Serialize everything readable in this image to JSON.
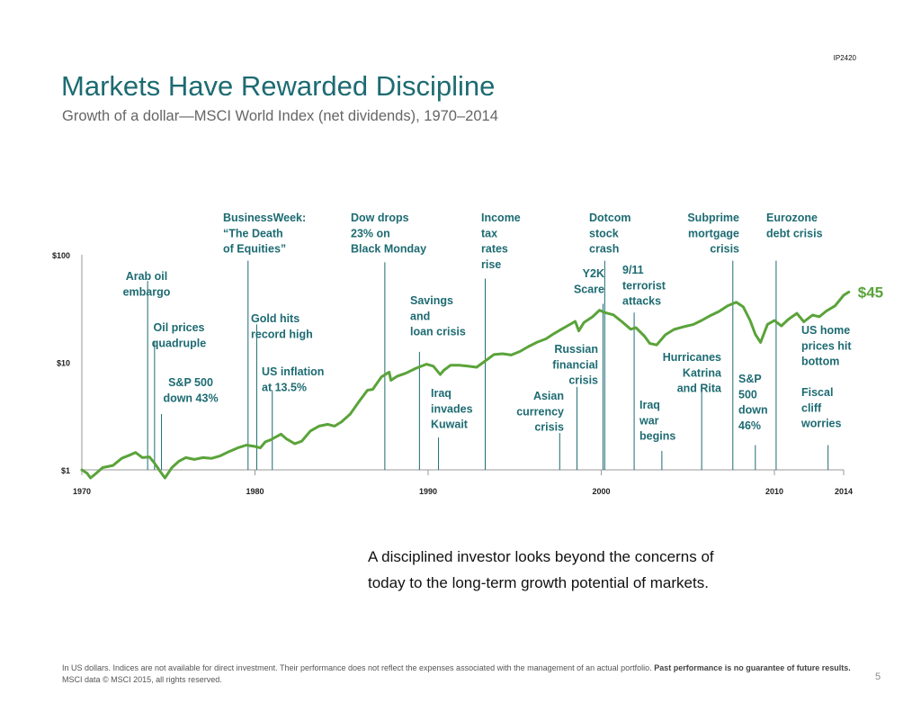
{
  "header": {
    "code": "IP2420",
    "title": "Markets Have Rewarded Discipline",
    "subtitle": "Growth of a dollar—MSCI World Index (net dividends), 1970–2014"
  },
  "chart_data": {
    "type": "line",
    "title": "Growth of a dollar—MSCI World Index (net dividends), 1970–2014",
    "y_scale": "log",
    "xlim": [
      1970,
      2014
    ],
    "ylim": [
      1,
      100
    ],
    "x_ticks": [
      "1970",
      "1980",
      "1990",
      "2000",
      "2010",
      "2014"
    ],
    "y_ticks": [
      "$1",
      "$10",
      "$100"
    ],
    "grid": false,
    "line_color": "#5aa33a",
    "annotation_color": "#1d6b72",
    "end_label": "$45",
    "series": [
      {
        "points": [
          [
            1970.0,
            1.0
          ],
          [
            1970.3,
            0.93
          ],
          [
            1970.5,
            0.84
          ],
          [
            1970.8,
            0.92
          ],
          [
            1971.2,
            1.05
          ],
          [
            1971.8,
            1.1
          ],
          [
            1972.3,
            1.28
          ],
          [
            1972.8,
            1.38
          ],
          [
            1973.1,
            1.45
          ],
          [
            1973.5,
            1.3
          ],
          [
            1973.9,
            1.32
          ],
          [
            1974.2,
            1.15
          ],
          [
            1974.5,
            0.98
          ],
          [
            1974.8,
            0.84
          ],
          [
            1975.2,
            1.05
          ],
          [
            1975.6,
            1.2
          ],
          [
            1976.0,
            1.3
          ],
          [
            1976.5,
            1.25
          ],
          [
            1977.0,
            1.3
          ],
          [
            1977.5,
            1.28
          ],
          [
            1978.0,
            1.35
          ],
          [
            1978.5,
            1.48
          ],
          [
            1979.0,
            1.6
          ],
          [
            1979.5,
            1.7
          ],
          [
            1980.0,
            1.65
          ],
          [
            1980.3,
            1.6
          ],
          [
            1980.6,
            1.82
          ],
          [
            1980.9,
            1.9
          ],
          [
            1981.5,
            2.15
          ],
          [
            1981.8,
            1.95
          ],
          [
            1982.3,
            1.75
          ],
          [
            1982.7,
            1.85
          ],
          [
            1983.2,
            2.3
          ],
          [
            1983.7,
            2.55
          ],
          [
            1984.2,
            2.65
          ],
          [
            1984.6,
            2.55
          ],
          [
            1985.0,
            2.8
          ],
          [
            1985.5,
            3.3
          ],
          [
            1986.0,
            4.3
          ],
          [
            1986.5,
            5.5
          ],
          [
            1986.8,
            5.6
          ],
          [
            1987.3,
            7.3
          ],
          [
            1987.75,
            8.1
          ],
          [
            1987.85,
            6.8
          ],
          [
            1988.2,
            7.4
          ],
          [
            1988.7,
            7.9
          ],
          [
            1989.3,
            8.8
          ],
          [
            1989.9,
            9.6
          ],
          [
            1990.3,
            9.2
          ],
          [
            1990.7,
            7.7
          ],
          [
            1990.9,
            8.4
          ],
          [
            1991.3,
            9.4
          ],
          [
            1991.8,
            9.4
          ],
          [
            1992.3,
            9.2
          ],
          [
            1992.8,
            9.0
          ],
          [
            1993.3,
            10.3
          ],
          [
            1993.8,
            11.8
          ],
          [
            1994.3,
            12.0
          ],
          [
            1994.8,
            11.7
          ],
          [
            1995.3,
            12.6
          ],
          [
            1995.8,
            14.0
          ],
          [
            1996.3,
            15.4
          ],
          [
            1996.8,
            16.5
          ],
          [
            1997.3,
            18.6
          ],
          [
            1997.7,
            20.3
          ],
          [
            1998.0,
            21.6
          ],
          [
            1998.5,
            24.0
          ],
          [
            1998.7,
            19.6
          ],
          [
            1999.0,
            23.5
          ],
          [
            1999.5,
            26.5
          ],
          [
            1999.9,
            30.5
          ],
          [
            2000.2,
            29.0
          ],
          [
            2000.7,
            27.6
          ],
          [
            2001.2,
            23.8
          ],
          [
            2001.7,
            20.3
          ],
          [
            2002.0,
            21.0
          ],
          [
            2002.5,
            17.5
          ],
          [
            2002.8,
            15.0
          ],
          [
            2003.2,
            14.5
          ],
          [
            2003.7,
            18.0
          ],
          [
            2004.2,
            20.2
          ],
          [
            2004.8,
            21.5
          ],
          [
            2005.3,
            22.4
          ],
          [
            2005.8,
            24.5
          ],
          [
            2006.3,
            27.2
          ],
          [
            2006.8,
            29.7
          ],
          [
            2007.3,
            33.5
          ],
          [
            2007.8,
            36.2
          ],
          [
            2008.2,
            32.8
          ],
          [
            2008.6,
            24.5
          ],
          [
            2008.9,
            18.2
          ],
          [
            2009.2,
            15.3
          ],
          [
            2009.6,
            22.5
          ],
          [
            2010.0,
            24.5
          ],
          [
            2010.4,
            21.8
          ],
          [
            2010.8,
            25.0
          ],
          [
            2011.3,
            28.5
          ],
          [
            2011.7,
            23.8
          ],
          [
            2012.2,
            27.5
          ],
          [
            2012.6,
            26.5
          ],
          [
            2013.0,
            30.0
          ],
          [
            2013.5,
            33.5
          ],
          [
            2014.0,
            42.0
          ],
          [
            2014.3,
            45.0
          ]
        ]
      }
    ],
    "annotations": [
      {
        "label": [
          "Arab oil",
          "embargo"
        ],
        "year": 1973.8,
        "marker_top": 57
      },
      {
        "label": [
          "Oil prices",
          "quadruple"
        ],
        "year": 1974.2,
        "marker_top": 15.4
      },
      {
        "label": [
          "S&P 500",
          "down 43%"
        ],
        "year": 1974.6,
        "marker_top": 3.3
      },
      {
        "label": [
          "BusinessWeek:",
          "“The Death",
          "of Equities”"
        ],
        "year": 1979.6,
        "marker_top": 88
      },
      {
        "label": [
          "Gold hits",
          "record high"
        ],
        "year": 1980.1,
        "marker_top": 22.5
      },
      {
        "label": [
          "US inflation",
          "at 13.5%"
        ],
        "year": 1981.0,
        "marker_top": 5.5
      },
      {
        "label": [
          "Dow drops",
          "23% on",
          "Black Monday"
        ],
        "year": 1987.5,
        "marker_top": 85
      },
      {
        "label": [
          "Savings",
          "and",
          "loan crisis"
        ],
        "year": 1989.5,
        "marker_top": 12.5
      },
      {
        "label": [
          "Iraq",
          "invades",
          "Kuwait"
        ],
        "year": 1990.6,
        "marker_top": 2.0
      },
      {
        "label": [
          "Income",
          "tax",
          "rates",
          "rise"
        ],
        "year": 1993.3,
        "marker_top": 60
      },
      {
        "label": [
          "Asian",
          "currency",
          "crisis"
        ],
        "year": 1997.6,
        "marker_top": 2.2
      },
      {
        "label": [
          "Russian",
          "financial",
          "crisis"
        ],
        "year": 1998.6,
        "marker_top": 5.9
      },
      {
        "label": [
          "Dotcom",
          "stock",
          "crash"
        ],
        "year": 2000.2,
        "marker_top": 88
      },
      {
        "label": [
          "Y2K",
          "Scare"
        ],
        "year": 2000.1,
        "marker_top": 35
      },
      {
        "label": [
          "9/11",
          "terrorist",
          "attacks"
        ],
        "year": 2001.9,
        "marker_top": 29
      },
      {
        "label": [
          "Iraq",
          "war",
          "begins"
        ],
        "year": 2003.5,
        "marker_top": 1.5
      },
      {
        "label": [
          "Hurricanes",
          "Katrina",
          "and Rita"
        ],
        "year": 2005.8,
        "marker_top": 5.4
      },
      {
        "label": [
          "Subprime",
          "mortgage",
          "crisis"
        ],
        "year": 2007.6,
        "marker_top": 88
      },
      {
        "label": [
          "S&P",
          "500",
          "down",
          "46%"
        ],
        "year": 2008.9,
        "marker_top": 1.7
      },
      {
        "label": [
          "Eurozone",
          "debt crisis"
        ],
        "year": 2010.1,
        "marker_top": 88
      },
      {
        "label": [
          "US home",
          "prices hit",
          "bottom"
        ],
        "year": 2013.0,
        "marker_top": null
      },
      {
        "label": [
          "Fiscal",
          "cliff",
          "worries"
        ],
        "year": 2013.1,
        "marker_top": 1.7
      }
    ]
  },
  "message": "A disciplined investor looks beyond the concerns of today to the long-term growth potential of markets.",
  "footnote": {
    "regular": "In US dollars. Indices are not available for direct investment. Their performance does not reflect the expenses associated with the management of an actual portfolio.",
    "bold": "Past performance is no guarantee of future results.",
    "tail": "MSCI data © MSCI 2015, all rights reserved."
  },
  "page_number": "5"
}
